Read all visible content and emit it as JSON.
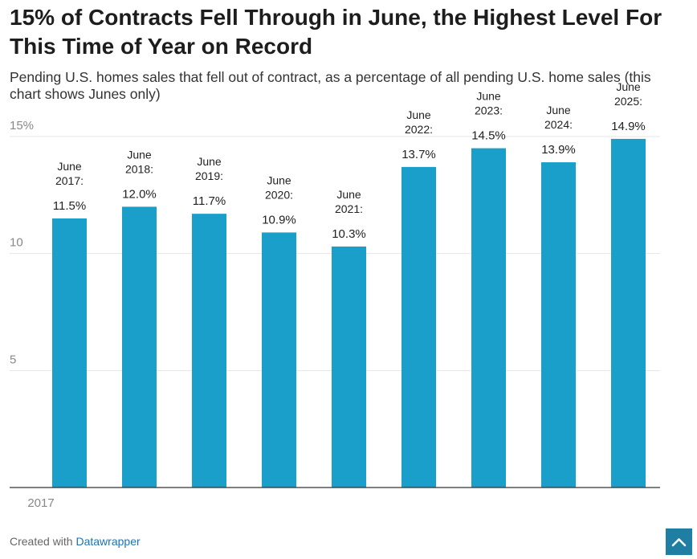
{
  "title": "15% of Contracts Fell Through in June, the Highest Level For This Time of Year on Record",
  "subtitle": "Pending U.S. homes sales that fell out of contract, as a percentage of all pending U.S. home sales (this chart shows Junes only)",
  "footer": {
    "prefix": "Created with ",
    "brand": "Datawrapper"
  },
  "colors": {
    "bar": "#1a9fcb",
    "grid": "#e4e4e4",
    "axis": "#333333",
    "tick_text": "#888888"
  },
  "icons": {
    "scroll_top": "chevron-up-icon"
  },
  "chart_data": {
    "type": "bar",
    "categories": [
      "June 2017:",
      "June 2018:",
      "June 2019:",
      "June 2020:",
      "June 2021:",
      "June 2022:",
      "June 2023:",
      "June 2024:",
      "June 2025:"
    ],
    "category_lines": [
      [
        "June",
        "2017:"
      ],
      [
        "June",
        "2018:"
      ],
      [
        "June",
        "2019:"
      ],
      [
        "June",
        "2020:"
      ],
      [
        "June",
        "2021:"
      ],
      [
        "June",
        "2022:"
      ],
      [
        "June",
        "2023:"
      ],
      [
        "June",
        "2024:"
      ],
      [
        "June",
        "2025:"
      ]
    ],
    "values": [
      11.5,
      12.0,
      11.7,
      10.9,
      10.3,
      13.7,
      14.5,
      13.9,
      14.9
    ],
    "value_labels": [
      "11.5%",
      "12.0%",
      "11.7%",
      "10.9%",
      "10.3%",
      "13.7%",
      "14.5%",
      "13.9%",
      "14.9%"
    ],
    "y_ticks": [
      5,
      10,
      15
    ],
    "y_tick_labels": [
      "5",
      "10",
      "15%"
    ],
    "x_tick_labels": [
      "2017"
    ],
    "ylim": [
      0,
      15
    ],
    "grid": true,
    "xlabel": "",
    "ylabel": ""
  }
}
